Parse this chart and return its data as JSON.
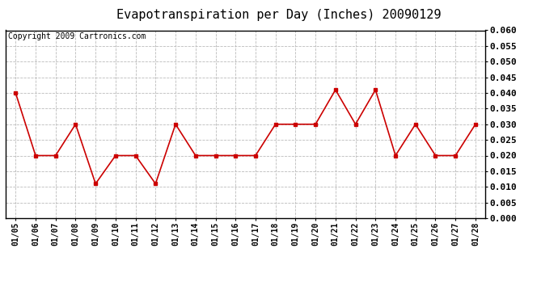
{
  "title": "Evapotranspiration per Day (Inches) 20090129",
  "copyright_text": "Copyright 2009 Cartronics.com",
  "x_labels": [
    "01/05",
    "01/06",
    "01/07",
    "01/08",
    "01/09",
    "01/10",
    "01/11",
    "01/12",
    "01/13",
    "01/14",
    "01/15",
    "01/16",
    "01/17",
    "01/18",
    "01/19",
    "01/20",
    "01/21",
    "01/22",
    "01/23",
    "01/24",
    "01/25",
    "01/26",
    "01/27",
    "01/28"
  ],
  "y_values": [
    0.04,
    0.02,
    0.02,
    0.03,
    0.011,
    0.02,
    0.02,
    0.011,
    0.03,
    0.02,
    0.02,
    0.02,
    0.02,
    0.03,
    0.03,
    0.03,
    0.041,
    0.03,
    0.041,
    0.02,
    0.03,
    0.02,
    0.02,
    0.03
  ],
  "ylim": [
    0.0,
    0.06
  ],
  "yticks": [
    0.0,
    0.005,
    0.01,
    0.015,
    0.02,
    0.025,
    0.03,
    0.035,
    0.04,
    0.045,
    0.05,
    0.055,
    0.06
  ],
  "line_color": "#cc0000",
  "marker_color": "#cc0000",
  "background_color": "#ffffff",
  "plot_bg_color": "#ffffff",
  "grid_color": "#bbbbbb",
  "title_fontsize": 11,
  "copyright_fontsize": 7,
  "ytick_fontsize": 8,
  "xtick_fontsize": 7
}
